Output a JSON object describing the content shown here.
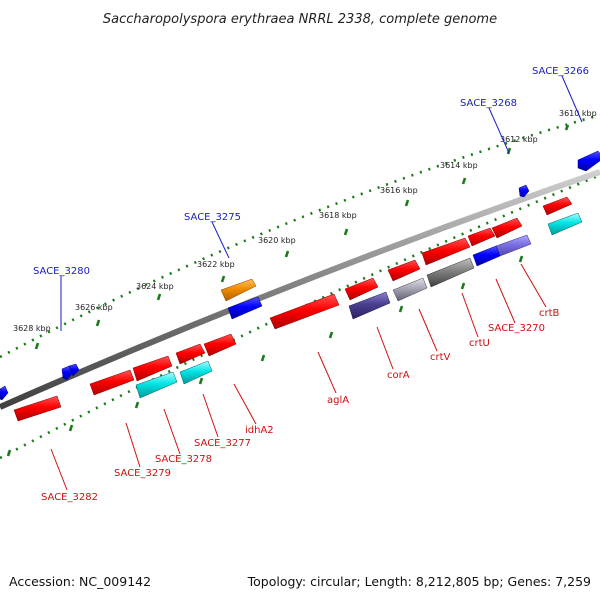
{
  "title": "Saccharopolyspora erythraea NRRL 2338, complete genome",
  "scale_labels": [
    "3610 kbp",
    "3612 kbp",
    "3614 kbp",
    "3616 kbp",
    "3618 kbp",
    "3620 kbp",
    "3622 kbp",
    "3624 kbp",
    "3626 kbp",
    "3628 kbp"
  ],
  "gene_labels_top": [
    "SACE_3266",
    "SACE_3268",
    "SACE_3275",
    "SACE_3280"
  ],
  "gene_labels_bottom": [
    "crtB",
    "SACE_3270",
    "crtU",
    "crtV",
    "corA",
    "aglA",
    "idhA2",
    "SACE_3277",
    "SACE_3278",
    "SACE_3279",
    "SACE_3282"
  ],
  "footer": {
    "accession": "Accession: NC_009142",
    "summary": "Topology: circular; Length: 8,212,805 bp; Genes: 7,259"
  },
  "colors": {
    "backbone": "#888888",
    "forward_gene": "#1010e0",
    "reverse_gene": "#e01010",
    "orange_gene": "#f08c00",
    "cyan_gene": "#00d0d0",
    "purple_gene": "#4a4090",
    "ticks": "#1a7a1a",
    "label_blue": "#1a1acc",
    "label_red": "#cc1111"
  }
}
